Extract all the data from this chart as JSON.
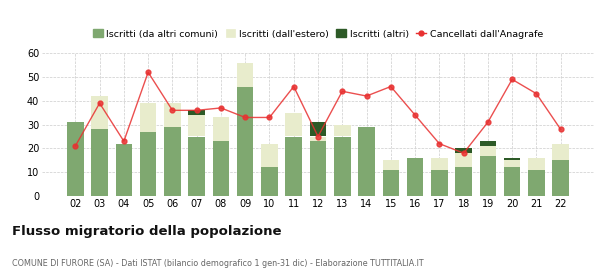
{
  "years": [
    "02",
    "03",
    "04",
    "05",
    "06",
    "07",
    "08",
    "09",
    "10",
    "11",
    "12",
    "13",
    "14",
    "15",
    "16",
    "17",
    "18",
    "19",
    "20",
    "21",
    "22"
  ],
  "iscritti_comuni": [
    31,
    28,
    22,
    27,
    29,
    25,
    23,
    46,
    12,
    25,
    23,
    25,
    29,
    11,
    16,
    11,
    12,
    17,
    12,
    11,
    15
  ],
  "iscritti_estero": [
    0,
    14,
    0,
    12,
    10,
    9,
    10,
    10,
    10,
    10,
    2,
    5,
    0,
    4,
    0,
    5,
    6,
    4,
    3,
    5,
    7
  ],
  "iscritti_altri": [
    0,
    0,
    0,
    0,
    0,
    2,
    0,
    0,
    0,
    0,
    6,
    0,
    0,
    0,
    0,
    0,
    2,
    2,
    1,
    0,
    0
  ],
  "cancellati": [
    21,
    39,
    23,
    52,
    36,
    36,
    37,
    33,
    33,
    46,
    25,
    44,
    42,
    46,
    34,
    22,
    18,
    31,
    49,
    43,
    28
  ],
  "color_comuni": "#7fa870",
  "color_estero": "#e8eccc",
  "color_altri": "#2d5a27",
  "color_cancellati": "#e83030",
  "title": "Flusso migratorio della popolazione",
  "subtitle": "COMUNE DI FURORE (SA) - Dati ISTAT (bilancio demografico 1 gen-31 dic) - Elaborazione TUTTITALIA.IT",
  "legend_labels": [
    "Iscritti (da altri comuni)",
    "Iscritti (dall'estero)",
    "Iscritti (altri)",
    "Cancellati dall'Anagrafe"
  ],
  "ylim": [
    0,
    60
  ],
  "yticks": [
    0,
    10,
    20,
    30,
    40,
    50,
    60
  ],
  "bg_color": "#ffffff",
  "grid_color": "#cccccc"
}
